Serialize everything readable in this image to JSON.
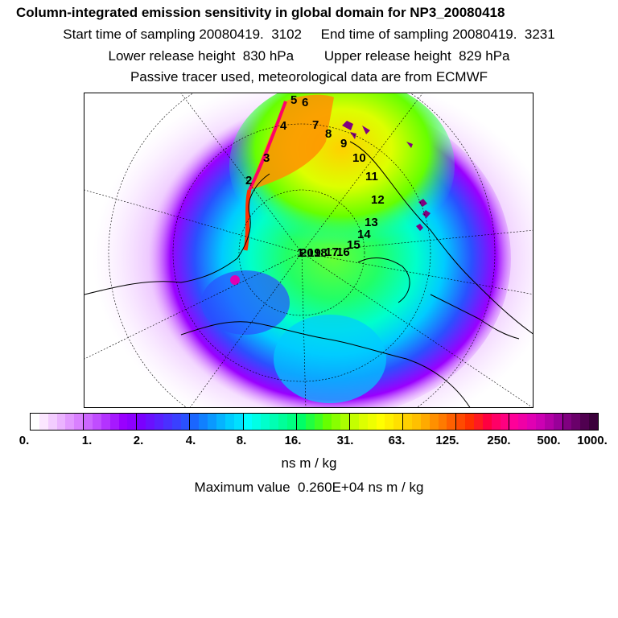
{
  "header": {
    "title": "Column-integrated emission sensitivity in global domain for NP3_20080418",
    "sampling_line": "Start time of sampling 20080419.  3102     End time of sampling 20080419.  3231",
    "release_line": "Lower release height  830 hPa        Upper release height  829 hPa",
    "tracer_line": "Passive tracer used, meteorological data are from ECMWF"
  },
  "map": {
    "projection": "polar stereographic (north pole)",
    "trajectory_labels": [
      "1",
      "2",
      "3",
      "4",
      "5",
      "6",
      "7",
      "8",
      "9",
      "10",
      "11",
      "12",
      "13",
      "14",
      "15",
      "16",
      "17",
      "18",
      "19",
      "20"
    ]
  },
  "colorbar": {
    "tick_labels": [
      "0.",
      "1.",
      "2.",
      "4.",
      "8.",
      "16.",
      "31.",
      "63.",
      "125.",
      "250.",
      "500.",
      "1000."
    ],
    "colors": [
      "#ffffff",
      "#fbe6ff",
      "#f3ccff",
      "#ebb3ff",
      "#e299ff",
      "#d980ff",
      "#cc66ff",
      "#c04dff",
      "#b333ff",
      "#a619ff",
      "#9900ff",
      "#8c00ff",
      "#7a00ff",
      "#6a10ff",
      "#5a20ff",
      "#4a30ff",
      "#3a40ff",
      "#2a50ff",
      "#1a66ff",
      "#1080ff",
      "#0a99ff",
      "#05b3ff",
      "#00ccff",
      "#00e0ff",
      "#00ffff",
      "#00ffe6",
      "#00ffcc",
      "#00ffb3",
      "#00ff99",
      "#00ff80",
      "#00ff66",
      "#20ff40",
      "#40ff20",
      "#66ff00",
      "#88ff00",
      "#aaff00",
      "#c4ff00",
      "#ddff00",
      "#eeff00",
      "#ffff00",
      "#fff000",
      "#ffe000",
      "#ffd000",
      "#ffc000",
      "#ffaa00",
      "#ff9000",
      "#ff7a00",
      "#ff6000",
      "#ff4a00",
      "#ff3000",
      "#ff1a20",
      "#ff0040",
      "#ff0066",
      "#ff0080",
      "#ff0099",
      "#f000a6",
      "#e000b3",
      "#cc00b3",
      "#b300a6",
      "#990099",
      "#800080",
      "#6a006a",
      "#500050",
      "#3a003a"
    ]
  },
  "units": "ns m / kg",
  "maximum_value_text": "Maximum value  0.260E+04 ns m / kg"
}
